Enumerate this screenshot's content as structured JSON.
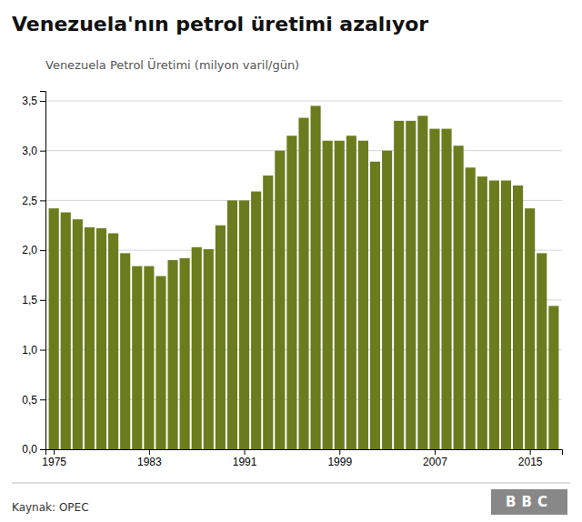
{
  "chart_data": {
    "type": "bar",
    "title": "Venezuela'nın petrol üretimi azalıyor",
    "subtitle": "Venezuela Petrol Üretimi (milyon varil/gün)",
    "source": "Kaynak: OPEC",
    "annotations": [
      "BBC"
    ],
    "x": [
      1975,
      1976,
      1977,
      1978,
      1979,
      1980,
      1981,
      1982,
      1983,
      1984,
      1985,
      1986,
      1987,
      1988,
      1989,
      1990,
      1991,
      1992,
      1993,
      1994,
      1995,
      1996,
      1997,
      1998,
      1999,
      2000,
      2001,
      2002,
      2003,
      2004,
      2005,
      2006,
      2007,
      2008,
      2009,
      2010,
      2011,
      2012,
      2013,
      2014,
      2015,
      2016,
      2017
    ],
    "values": [
      2.42,
      2.38,
      2.31,
      2.23,
      2.22,
      2.17,
      1.97,
      1.84,
      1.84,
      1.74,
      1.9,
      1.92,
      2.03,
      2.01,
      2.25,
      2.5,
      2.5,
      2.59,
      2.75,
      3.0,
      3.15,
      3.33,
      3.45,
      3.1,
      3.1,
      3.15,
      3.1,
      2.89,
      3.0,
      3.3,
      3.3,
      3.35,
      3.22,
      3.22,
      3.05,
      2.83,
      2.74,
      2.7,
      2.7,
      2.65,
      2.42,
      1.97,
      1.44
    ],
    "color": "#6b7c1e",
    "xlim": [
      1974.3,
      2017.7
    ],
    "xticks": [
      1975,
      1983,
      1991,
      1999,
      2007,
      2015
    ],
    "ylim": [
      0,
      3.6
    ],
    "yticks": [
      {
        "value": 0.0,
        "label": "0,0"
      },
      {
        "value": 0.5,
        "label": "0,5"
      },
      {
        "value": 1.0,
        "label": "1,0"
      },
      {
        "value": 1.5,
        "label": "1,5"
      },
      {
        "value": 2.0,
        "label": "2,0"
      },
      {
        "value": 2.5,
        "label": "2,5"
      },
      {
        "value": 3.0,
        "label": "3,0"
      },
      {
        "value": 3.5,
        "label": "3,5"
      }
    ],
    "grid": true
  }
}
